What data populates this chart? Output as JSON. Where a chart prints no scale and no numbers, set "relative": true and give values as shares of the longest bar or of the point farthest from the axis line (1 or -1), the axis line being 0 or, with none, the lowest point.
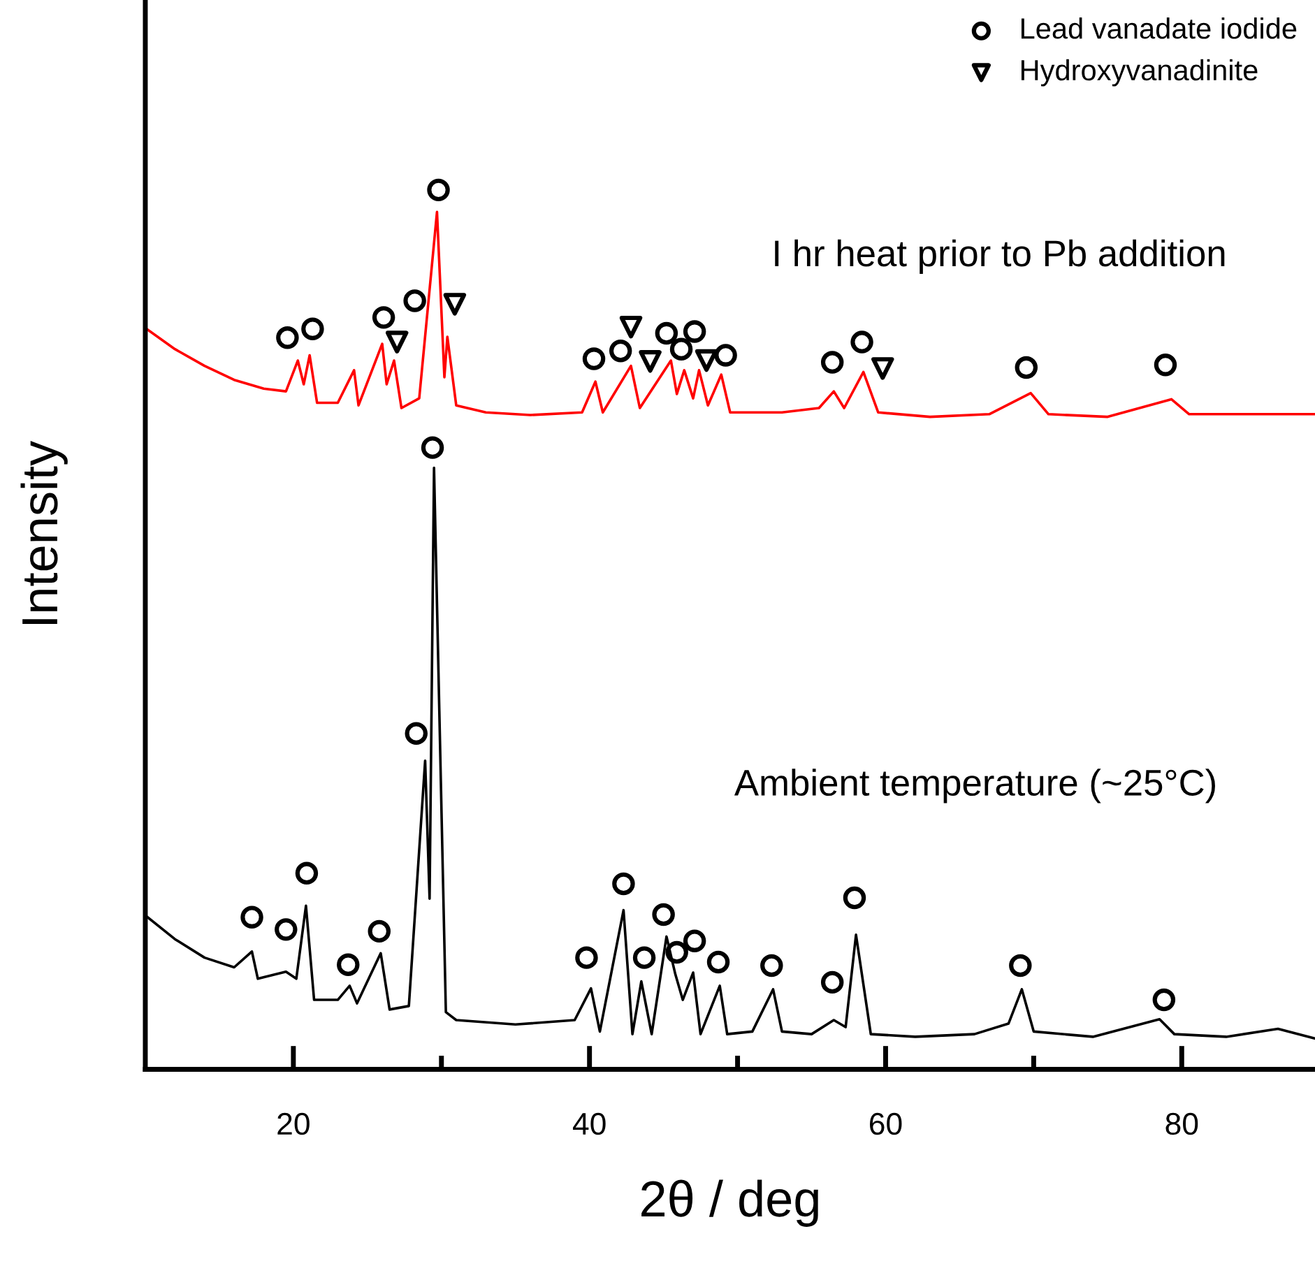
{
  "chart_data": {
    "type": "line",
    "relative": true,
    "xlabel": "2θ / deg",
    "ylabel": "Intensity",
    "xlim": [
      10,
      89
    ],
    "xticks": [
      20,
      {
        "value": 30,
        "label": null
      },
      40,
      {
        "value": 50,
        "label": null
      },
      60,
      {
        "value": 70,
        "label": null
      },
      80
    ],
    "tick_labels": "x",
    "grid": false,
    "legend": "top right",
    "annotations": [
      "I hr heat prior to Pb addition",
      "Ambient temperature (~25°C)"
    ],
    "series": [
      {
        "color": "#ff0000",
        "x": [
          10,
          12,
          14,
          16,
          18,
          19.5,
          20.3,
          20.7,
          21.1,
          21.6,
          23,
          24.1,
          24.4,
          26.0,
          26.3,
          26.8,
          27.3,
          28.5,
          29.7,
          30.2,
          30.4,
          31,
          33,
          36,
          39.5,
          40.4,
          40.9,
          42.8,
          43.4,
          45.5,
          45.9,
          46.4,
          47,
          47.4,
          48,
          48.9,
          49.5,
          53,
          55.5,
          56.5,
          57.2,
          58.5,
          59.5,
          63,
          67,
          69.8,
          71,
          75,
          79.3,
          80.5,
          85,
          89
        ],
        "values": [
          0.843,
          0.819,
          0.8,
          0.784,
          0.774,
          0.771,
          0.806,
          0.779,
          0.812,
          0.758,
          0.758,
          0.795,
          0.755,
          0.825,
          0.779,
          0.806,
          0.752,
          0.763,
          0.975,
          0.787,
          0.833,
          0.755,
          0.747,
          0.744,
          0.747,
          0.782,
          0.747,
          0.8,
          0.752,
          0.806,
          0.768,
          0.795,
          0.763,
          0.795,
          0.755,
          0.79,
          0.747,
          0.747,
          0.752,
          0.771,
          0.752,
          0.793,
          0.747,
          0.742,
          0.745,
          0.769,
          0.745,
          0.742,
          0.762,
          0.745,
          0.745,
          0.745
        ]
      },
      {
        "color": "#000000",
        "x": [
          10,
          12,
          14,
          16,
          17.2,
          17.6,
          19.5,
          20.2,
          20.85,
          21.4,
          23,
          23.8,
          24.3,
          25.9,
          26.5,
          27.8,
          28.9,
          29.2,
          29.5,
          30.3,
          31,
          35,
          39,
          40.1,
          40.7,
          42.3,
          42.9,
          43.5,
          44.2,
          45.2,
          45.8,
          46.3,
          47.0,
          47.5,
          48.8,
          49.3,
          51,
          52.4,
          53,
          55,
          56.5,
          57.3,
          58.0,
          59,
          62,
          66,
          68.3,
          69.2,
          70,
          74,
          78.5,
          79.5,
          83,
          86.5,
          89
        ],
        "values": [
          0.175,
          0.148,
          0.127,
          0.116,
          0.134,
          0.103,
          0.111,
          0.103,
          0.186,
          0.079,
          0.079,
          0.095,
          0.075,
          0.132,
          0.068,
          0.072,
          0.351,
          0.194,
          0.684,
          0.065,
          0.056,
          0.051,
          0.056,
          0.092,
          0.043,
          0.181,
          0.04,
          0.1,
          0.04,
          0.151,
          0.108,
          0.079,
          0.11,
          0.04,
          0.095,
          0.04,
          0.043,
          0.091,
          0.043,
          0.04,
          0.056,
          0.048,
          0.153,
          0.04,
          0.037,
          0.04,
          0.052,
          0.091,
          0.043,
          0.037,
          0.057,
          0.04,
          0.037,
          0.046,
          0.035
        ]
      },
      {
        "type": "scatter",
        "name": "Lead vanadate iodide",
        "color": "#000000",
        "marker": "circle",
        "x": [
          19.6,
          21.3,
          26.1,
          28.2,
          29.8,
          40.3,
          42.1,
          45.2,
          46.2,
          47.1,
          49.2,
          56.4,
          58.4,
          69.5,
          78.9,
          17.2,
          19.5,
          20.9,
          23.7,
          25.8,
          28.3,
          29.4,
          39.8,
          42.3,
          43.7,
          45.0,
          45.9,
          47.1,
          48.7,
          52.3,
          56.4,
          57.9,
          69.1,
          78.8
        ],
        "values": [
          0.832,
          0.842,
          0.855,
          0.874,
          1,
          0.808,
          0.817,
          0.837,
          0.819,
          0.839,
          0.812,
          0.804,
          0.827,
          0.798,
          0.801,
          0.173,
          0.159,
          0.223,
          0.119,
          0.157,
          0.382,
          0.707,
          0.127,
          0.211,
          0.127,
          0.176,
          0.133,
          0.146,
          0.122,
          0.118,
          0.099,
          0.195,
          0.118,
          0.079
        ]
      },
      {
        "type": "scatter",
        "name": "Hydroxyvanadinite",
        "color": "#000000",
        "marker": "triangle",
        "x": [
          27.0,
          30.9,
          42.8,
          44.1,
          47.9,
          59.8
        ],
        "values": [
          0.827,
          0.87,
          0.844,
          0.805,
          0.806,
          0.797
        ]
      }
    ]
  }
}
